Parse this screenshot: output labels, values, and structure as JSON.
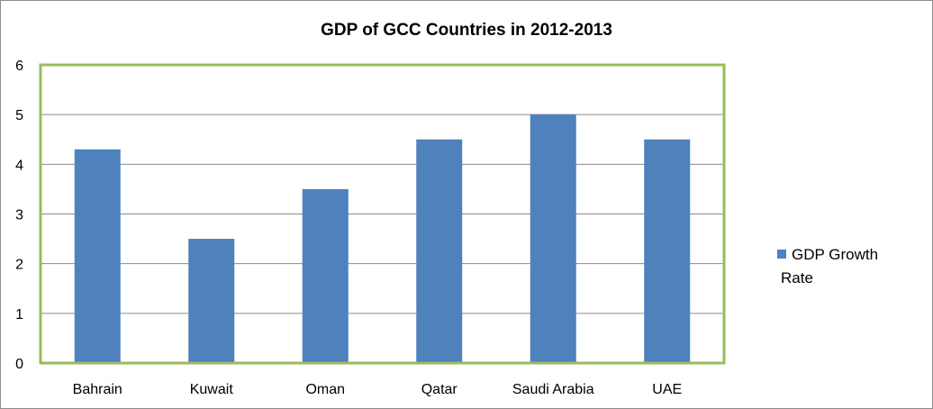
{
  "chart_data": {
    "type": "bar",
    "title": "GDP of GCC Countries in 2012-2013",
    "categories": [
      "Bahrain",
      "Kuwait",
      "Oman",
      "Qatar",
      "Saudi Arabia",
      "UAE"
    ],
    "series": [
      {
        "name": "GDP Growth Rate",
        "legend_lines": [
          "GDP Growth",
          "Rate"
        ],
        "values": [
          4.3,
          2.5,
          3.5,
          4.5,
          5.0,
          4.5
        ],
        "color": "#4f81bd"
      }
    ],
    "xlabel": "",
    "ylabel": "",
    "ylim": [
      0,
      6
    ],
    "yticks": [
      "0",
      "1",
      "2",
      "3",
      "4",
      "5",
      "6"
    ],
    "grid": true,
    "legend_position": "right",
    "plot_border_color": "#9bbb59",
    "gridline_color": "#8c8c8c"
  }
}
